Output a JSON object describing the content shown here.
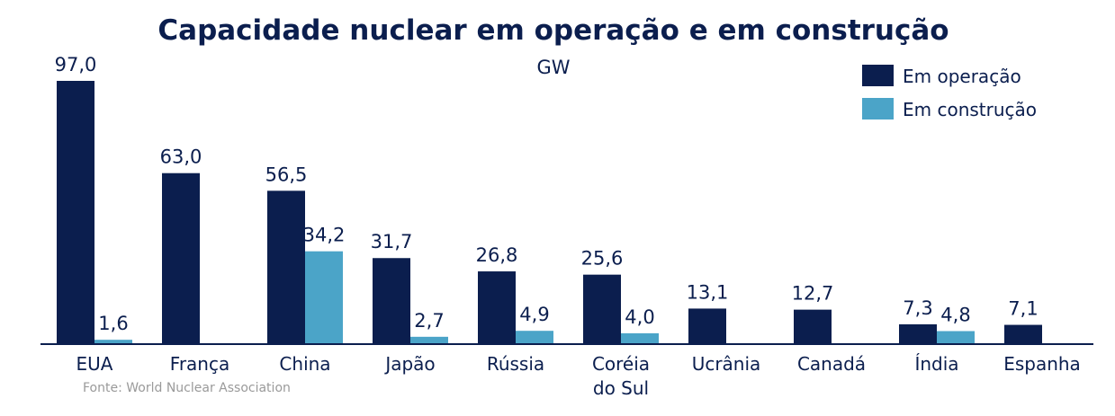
{
  "colors": {
    "operating": "#0b1e4e",
    "construction": "#4ba4c8",
    "text": "#0b1e4e",
    "source": "#9a9a9a",
    "axis": "#0b1e4e"
  },
  "source": "Fonte: World Nuclear Association",
  "chart_data": {
    "type": "bar",
    "title": "Capacidade nuclear em operação e em construção",
    "subtitle": "GW",
    "legend_position": "top-right",
    "categories": [
      "EUA",
      "França",
      "China",
      "Japão",
      "Rússia",
      "Coréia do Sul",
      "Ucrânia",
      "Canadá",
      "Índia",
      "Espanha"
    ],
    "category_lines": [
      [
        "EUA"
      ],
      [
        "França"
      ],
      [
        "China"
      ],
      [
        "Japão"
      ],
      [
        "Rússia"
      ],
      [
        "Coréia",
        "do Sul"
      ],
      [
        "Ucrânia"
      ],
      [
        "Canadá"
      ],
      [
        "Índia"
      ],
      [
        "Espanha"
      ]
    ],
    "series": [
      {
        "name": "Em operação",
        "values": [
          97.0,
          63.0,
          56.5,
          31.7,
          26.8,
          25.6,
          13.1,
          12.7,
          7.3,
          7.1
        ],
        "labels": [
          "97,0",
          "63,0",
          "56,5",
          "31,7",
          "26,8",
          "25,6",
          "13,1",
          "12,7",
          "7,3",
          "7,1"
        ]
      },
      {
        "name": "Em construção",
        "values": [
          1.6,
          null,
          34.2,
          2.7,
          4.9,
          4.0,
          null,
          null,
          4.8,
          null
        ],
        "labels": [
          "1,6",
          "",
          "34,2",
          "2,7",
          "4,9",
          "4,0",
          "",
          "",
          "4,8",
          ""
        ]
      }
    ],
    "ylim": [
      0,
      97
    ],
    "grid": false
  }
}
